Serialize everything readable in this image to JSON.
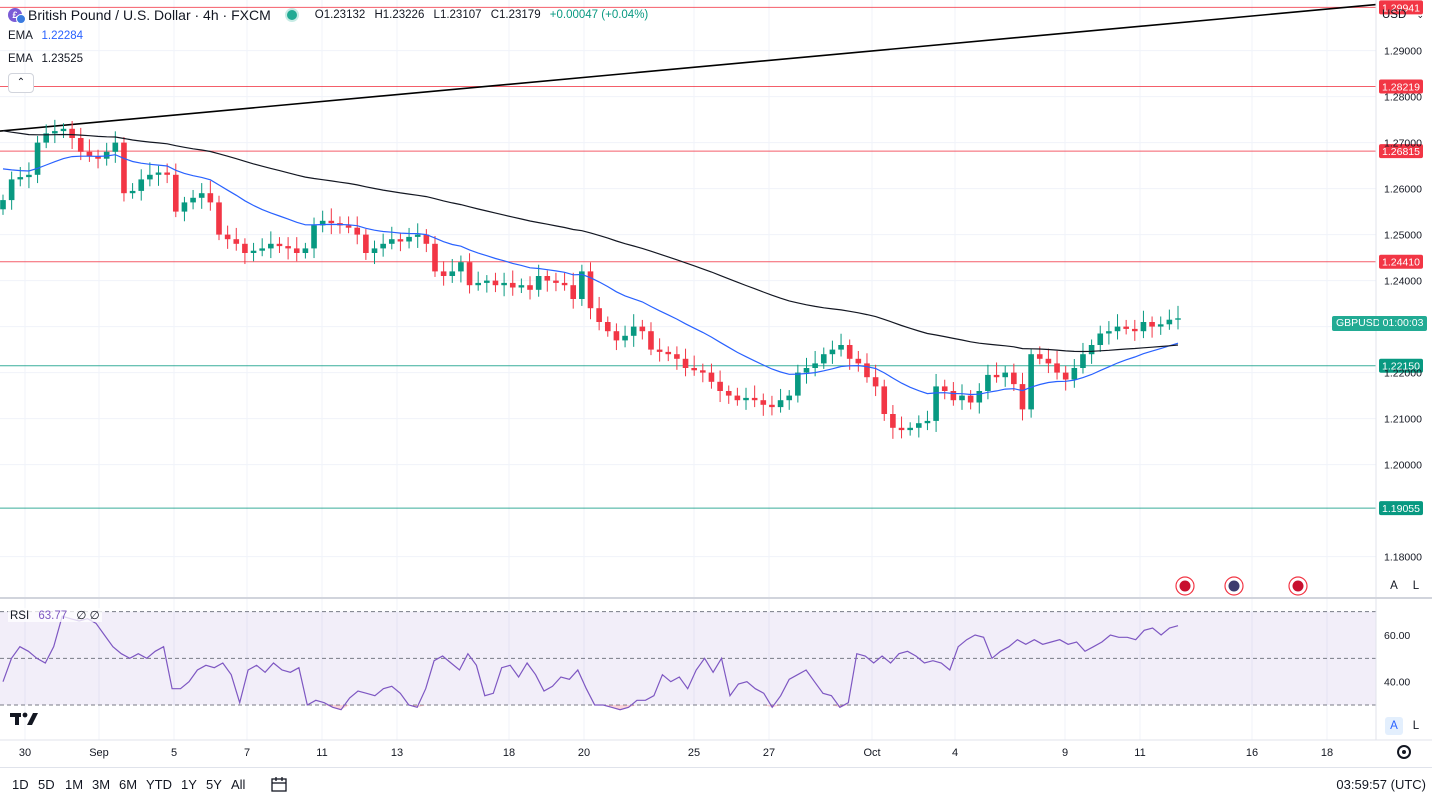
{
  "header": {
    "title": "British Pound / U.S. Dollar · 4h · FXCM",
    "open": "O1.23132",
    "high": "H1.23226",
    "low": "L1.23107",
    "close": "C1.23179",
    "change": "+0.00047 (+0.04%)"
  },
  "indicators": {
    "ema1_label": "EMA",
    "ema1_value": "1.22284",
    "ema2_label": "EMA",
    "ema2_value": "1.23525",
    "rsi_label": "RSI",
    "rsi_value": "63.77",
    "rsi_extra": "∅ ∅"
  },
  "currency_selector": "USD",
  "symbol_tag": "GBPUSD",
  "countdown": "01:00:03",
  "scale_buttons": {
    "auto": "A",
    "log": "L"
  },
  "range_buttons": [
    "1D",
    "5D",
    "1M",
    "3M",
    "6M",
    "YTD",
    "1Y",
    "5Y",
    "All"
  ],
  "clock": "03:59:57 (UTC)",
  "colors": {
    "up": "#089981",
    "down": "#f23645",
    "ema_fast": "#2962ff",
    "ema_slow": "#131722",
    "rsi": "#7e57c2",
    "resistance": "#f23645",
    "support": "#089981"
  },
  "chart_data": [
    {
      "type": "candlestick",
      "title": "British Pound / U.S. Dollar · 4h · FXCM",
      "x_tick_labels": [
        "30",
        "Sep",
        "5",
        "7",
        "11",
        "13",
        "18",
        "20",
        "25",
        "27",
        "Oct",
        "4",
        "9",
        "11",
        "16",
        "18"
      ],
      "y_tick_labels": [
        "1.29000",
        "1.28000",
        "1.27000",
        "1.26000",
        "1.25000",
        "1.24000",
        "1.23000",
        "1.22000",
        "1.21000",
        "1.20000",
        "1.18000"
      ],
      "ylim": [
        1.171,
        1.301
      ],
      "horizontal_levels": [
        {
          "label": "1.29941",
          "value": 1.29941,
          "kind": "resistance"
        },
        {
          "label": "1.28219",
          "value": 1.28219,
          "kind": "resistance"
        },
        {
          "label": "1.26815",
          "value": 1.26815,
          "kind": "resistance"
        },
        {
          "label": "1.24410",
          "value": 1.2441,
          "kind": "resistance"
        },
        {
          "label": "1.22150",
          "value": 1.2215,
          "kind": "support"
        },
        {
          "label": "1.19055",
          "value": 1.19055,
          "kind": "support"
        }
      ],
      "trendline": {
        "start": 1.2725,
        "end": 1.3
      },
      "closes": [
        1.2575,
        1.262,
        1.2625,
        1.263,
        1.27,
        1.272,
        1.2725,
        1.273,
        1.271,
        1.268,
        1.267,
        1.2665,
        1.268,
        1.27,
        1.259,
        1.2595,
        1.262,
        1.263,
        1.2635,
        1.263,
        1.255,
        1.257,
        1.258,
        1.259,
        1.257,
        1.25,
        1.249,
        1.248,
        1.246,
        1.2465,
        1.247,
        1.248,
        1.2475,
        1.247,
        1.246,
        1.247,
        1.252,
        1.253,
        1.2525,
        1.252,
        1.2515,
        1.25,
        1.246,
        1.247,
        1.248,
        1.249,
        1.2485,
        1.2495,
        1.25,
        1.248,
        1.242,
        1.241,
        1.242,
        1.244,
        1.239,
        1.2395,
        1.24,
        1.239,
        1.2395,
        1.2385,
        1.239,
        1.238,
        1.241,
        1.24,
        1.2395,
        1.239,
        1.236,
        1.242,
        1.234,
        1.231,
        1.229,
        1.227,
        1.228,
        1.23,
        1.229,
        1.225,
        1.2245,
        1.224,
        1.223,
        1.221,
        1.2205,
        1.22,
        1.218,
        1.216,
        1.215,
        1.214,
        1.2145,
        1.214,
        1.213,
        1.2125,
        1.214,
        1.215,
        1.22,
        1.221,
        1.222,
        1.224,
        1.225,
        1.226,
        1.223,
        1.222,
        1.219,
        1.217,
        1.211,
        1.208,
        1.2075,
        1.208,
        1.209,
        1.2095,
        1.217,
        1.216,
        1.214,
        1.215,
        1.2135,
        1.216,
        1.2195,
        1.219,
        1.22,
        1.2175,
        1.212,
        1.224,
        1.223,
        1.222,
        1.22,
        1.2185,
        1.221,
        1.224,
        1.226,
        1.2285,
        1.229,
        1.23,
        1.2295,
        1.229,
        1.231,
        1.23,
        1.2305,
        1.2315,
        1.2318
      ],
      "ema_fast_end": 1.22284,
      "ema_slow_end": 1.23525
    },
    {
      "type": "line",
      "title": "RSI",
      "y_tick_labels": [
        "60.00",
        "40.00"
      ],
      "ylim": [
        15,
        75
      ],
      "bands": [
        70,
        50,
        30
      ],
      "values": [
        40,
        50,
        55,
        53,
        50,
        48,
        55,
        68,
        67,
        66,
        67,
        65,
        60,
        55,
        52,
        50,
        52,
        50,
        53,
        55,
        37,
        37,
        40,
        45,
        47,
        46,
        48,
        43,
        31,
        45,
        47,
        44,
        48,
        45,
        44,
        46,
        30,
        32,
        31,
        29,
        28,
        33,
        36,
        35,
        34,
        37,
        38,
        35,
        30,
        29,
        37,
        49,
        51,
        48,
        45,
        52,
        47,
        34,
        35,
        46,
        47,
        42,
        48,
        43,
        36,
        38,
        42,
        41,
        45,
        37,
        30,
        30,
        29,
        28,
        29,
        32,
        32,
        34,
        43,
        40,
        42,
        37,
        45,
        50,
        44,
        50,
        34,
        39,
        40,
        37,
        35,
        29,
        34,
        41,
        43,
        45,
        40,
        35,
        34,
        29,
        31,
        52,
        51,
        48,
        51,
        48,
        52,
        53,
        51,
        48,
        49,
        48,
        45,
        55,
        58,
        60,
        59,
        50,
        53,
        55,
        58,
        56,
        58,
        56,
        57,
        58,
        56,
        57,
        53,
        55,
        57,
        60,
        59,
        59,
        58,
        62,
        63,
        60,
        63,
        64
      ],
      "last": 63.77
    }
  ]
}
